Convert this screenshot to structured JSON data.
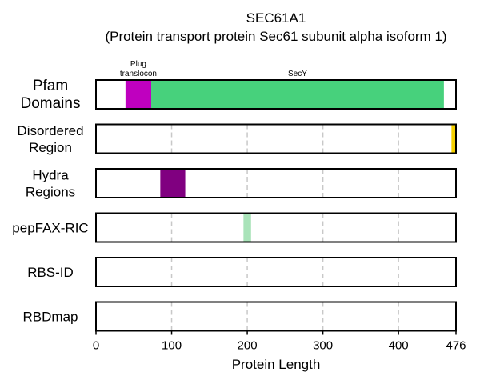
{
  "chart_data": {
    "type": "bar",
    "title": "SEC61A1",
    "subtitle": "(Protein transport protein Sec61 subunit alpha isoform 1)",
    "xlabel": "Protein Length",
    "xlim": [
      0,
      476
    ],
    "xticks": [
      0,
      100,
      200,
      300,
      400,
      476
    ],
    "grid": true,
    "tracks": [
      {
        "label": "Pfam\nDomains",
        "segments": [
          {
            "name": "Plug\ntranslocon",
            "start": 39,
            "end": 73,
            "color": "#bf00bf"
          },
          {
            "name": "SecY",
            "start": 73,
            "end": 460,
            "color": "#47d17c"
          }
        ]
      },
      {
        "label": "Disordered\nRegion",
        "segments": [
          {
            "name": "",
            "start": 470,
            "end": 476,
            "color": "#f5d000"
          }
        ]
      },
      {
        "label": "Hydra\nRegions",
        "segments": [
          {
            "name": "",
            "start": 85,
            "end": 118,
            "color": "#800080"
          }
        ]
      },
      {
        "label": "pepFAX-RIC",
        "segments": [
          {
            "name": "",
            "start": 195,
            "end": 205,
            "color": "#a9e3b9"
          }
        ]
      },
      {
        "label": "RBS-ID",
        "segments": []
      },
      {
        "label": "RBDmap",
        "segments": []
      }
    ]
  }
}
